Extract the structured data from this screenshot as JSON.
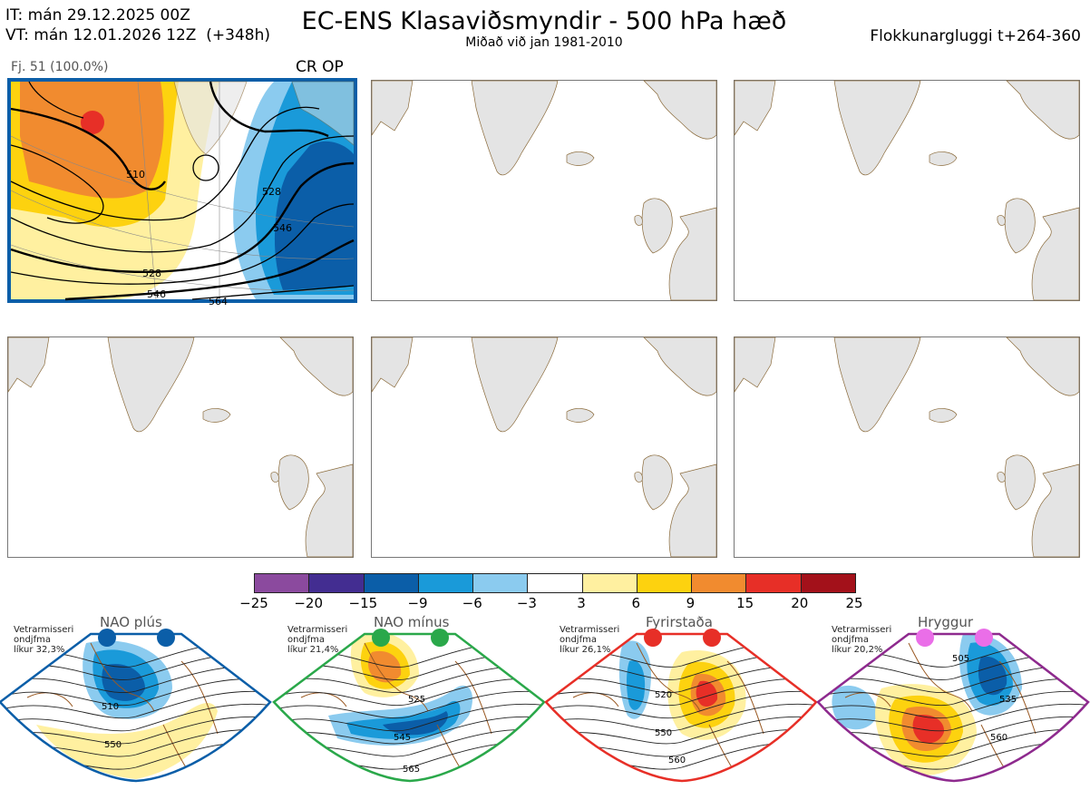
{
  "header": {
    "it_line": "IT: mán 29.12.2025 00Z",
    "vt_line": "VT: mán 12.01.2026 12Z  (+348h)",
    "title": "EC-ENS Klasaviðsmyndir - 500 hPa hæð",
    "subtitle": "Miðað við jan 1981-2010",
    "window_label": "Flokkunargluggi t+264-360"
  },
  "main_panel": {
    "member_label": "Fj. 51 (100.0%)",
    "type_label": "CR OP",
    "contour_labels": [
      "510",
      "528",
      "546",
      "528",
      "546",
      "564"
    ]
  },
  "colorbar": {
    "colors": [
      "#8b4a9e",
      "#432d91",
      "#0b5ea8",
      "#1a9ad9",
      "#8bcbef",
      "#ffffff",
      "#fff0a0",
      "#fdd20f",
      "#f18b2f",
      "#e72f27",
      "#a3111a"
    ],
    "ticks": [
      "−25",
      "−20",
      "−15",
      "−9",
      "−6",
      "−3",
      "3",
      "6",
      "9",
      "15",
      "20",
      "25"
    ]
  },
  "regimes": [
    {
      "name": "NAO plús",
      "season": "Vetrarmisseri",
      "label2": "ondjfma",
      "prob": "líkur 32,3%",
      "color": "#0b5ea8",
      "dot": "#0b5ea8",
      "contours": [
        "510",
        "550"
      ]
    },
    {
      "name": "NAO mínus",
      "season": "Vetrarmisseri",
      "label2": "ondjfma",
      "prob": "líkur 21,4%",
      "color": "#2aa84a",
      "dot": "#2aa84a",
      "contours": [
        "525",
        "545",
        "565"
      ]
    },
    {
      "name": "Fyrirstaða",
      "season": "Vetrarmisseri",
      "label2": "ondjfma",
      "prob": "líkur 26,1%",
      "color": "#e72f27",
      "dot": "#e72f27",
      "contours": [
        "520",
        "550",
        "560"
      ]
    },
    {
      "name": "Hryggur",
      "season": "Vetrarmisseri",
      "label2": "ondjfma",
      "prob": "líkur 20,2%",
      "color": "#8e2a8e",
      "dot": "#ea6ee8",
      "contours": [
        "505",
        "535",
        "560"
      ]
    }
  ]
}
